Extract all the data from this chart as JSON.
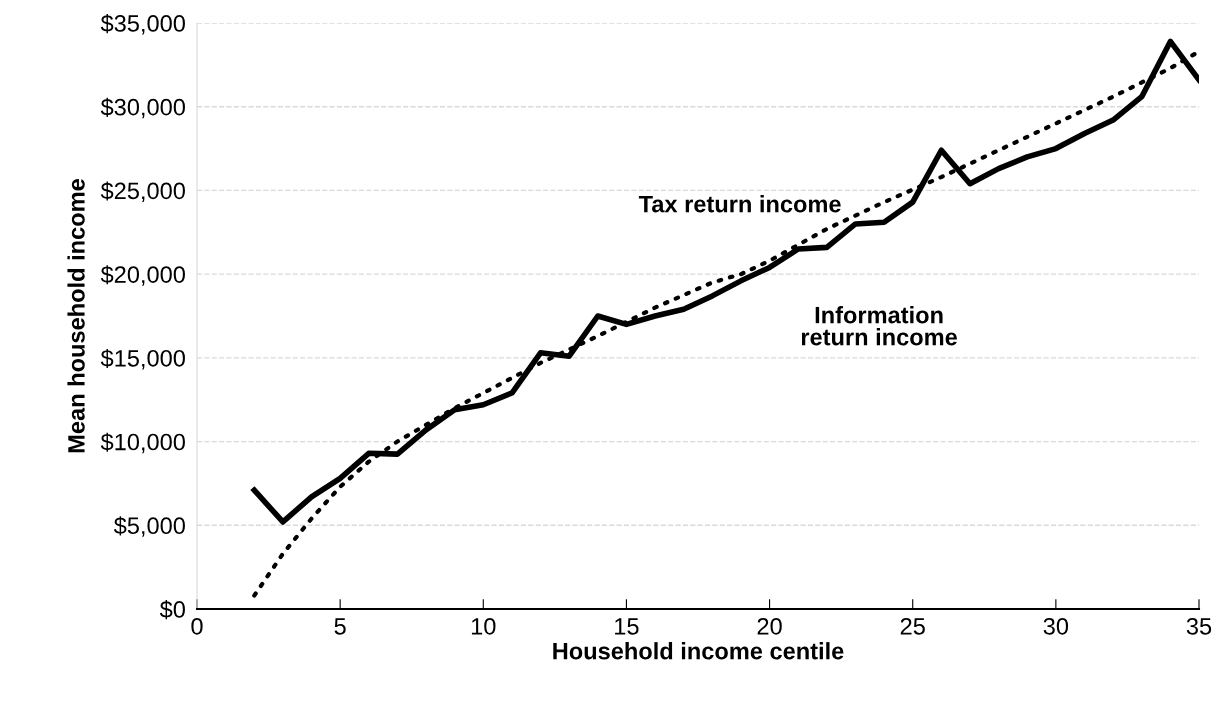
{
  "chart_data": {
    "type": "line",
    "xlabel": "Household income centile",
    "ylabel": "Mean household income",
    "xlim": [
      0,
      35
    ],
    "xticks": [
      0,
      5,
      10,
      15,
      20,
      25,
      30,
      35
    ],
    "ylim": [
      0,
      35000
    ],
    "yticks": [
      {
        "value": 0,
        "label": "$0"
      },
      {
        "value": 5000,
        "label": "$5,000"
      },
      {
        "value": 10000,
        "label": "$10,000"
      },
      {
        "value": 15000,
        "label": "$15,000"
      },
      {
        "value": 20000,
        "label": "$20,000"
      },
      {
        "value": 25000,
        "label": "$25,000"
      },
      {
        "value": 30000,
        "label": "$30,000"
      },
      {
        "value": 35000,
        "label": "$35,000"
      }
    ],
    "grid": "y",
    "marker": "none",
    "series": [
      {
        "name": "Information\nreturn income",
        "color": "#000000",
        "line_style": "solid",
        "x": [
          2,
          3,
          4,
          5,
          6,
          7,
          8,
          9,
          10,
          11,
          12,
          13,
          14,
          15,
          16,
          17,
          18,
          19,
          20,
          21,
          22,
          23,
          24,
          25,
          26,
          27,
          28,
          29,
          30,
          31,
          32,
          33,
          34,
          35
        ],
        "values": [
          7100,
          5200,
          6700,
          7800,
          9300,
          9250,
          10700,
          11900,
          12200,
          12900,
          15300,
          15100,
          17500,
          17000,
          17500,
          17900,
          18700,
          19600,
          20400,
          21500,
          21600,
          23000,
          23100,
          24300,
          27400,
          25400,
          26300,
          27000,
          27500,
          28400,
          29200,
          30600,
          33900,
          31600
        ]
      },
      {
        "name": "Tax return income",
        "color": "#000000",
        "line_style": "dotted",
        "x": [
          2,
          3,
          4,
          5,
          6,
          7,
          8,
          9,
          10,
          12,
          14,
          16,
          18,
          19,
          20,
          22,
          24,
          26,
          28,
          30,
          32,
          34,
          35
        ],
        "values": [
          800,
          3300,
          5400,
          7300,
          8800,
          10000,
          11000,
          12000,
          12900,
          14700,
          16300,
          18000,
          19500,
          20000,
          20800,
          22700,
          24300,
          25800,
          27400,
          29000,
          30600,
          32300,
          33300
        ]
      }
    ]
  }
}
